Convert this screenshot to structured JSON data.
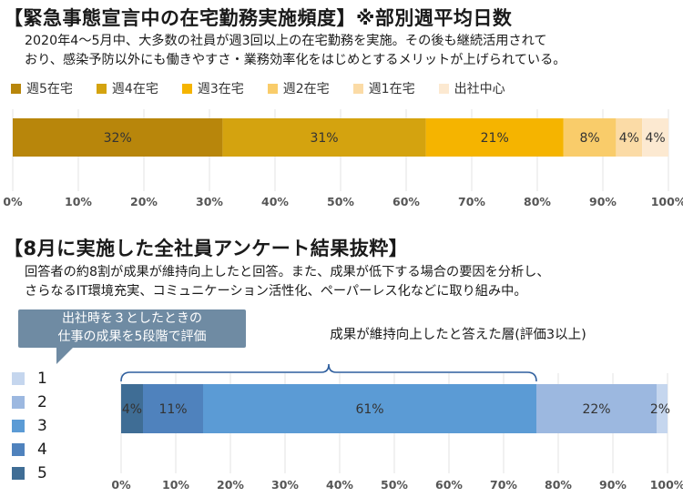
{
  "section1": {
    "title": "【緊急事態宣言中の在宅勤務実施頻度】※部別週平均日数",
    "description_lines": [
      "2020年4～5月中、大多数の社員が週3回以上の在宅勤務を実施。その後も継続活用されて",
      "おり、感染予防以外にも働きやすさ・業務効率化をはじめとするメリットが上げられている。"
    ]
  },
  "section2": {
    "title": "【8月に実施した全社員アンケート結果抜粋】",
    "description_lines": [
      "回答者の約8割が成果が維持向上したと回答。また、成果が低下する場合の要因を分析し、",
      "さらなるIT環境充実、コミュニケーション活性化、ペーパーレス化などに取り組み中。"
    ],
    "callout_lines": [
      "出社時を３としたときの",
      "仕事の成果を5段階で評価"
    ],
    "bracket_label": "成果が維持向上したと答えた層(評価3以上)"
  },
  "chart_data": [
    {
      "type": "bar",
      "orientation": "horizontal-stacked",
      "xlim": [
        0,
        100
      ],
      "x_ticks": [
        "0%",
        "10%",
        "20%",
        "30%",
        "40%",
        "50%",
        "60%",
        "70%",
        "80%",
        "90%",
        "100%"
      ],
      "legend_position": "top",
      "series": [
        {
          "name": "週5在宅",
          "value": 32,
          "label": "32%",
          "color": "#b8860b"
        },
        {
          "name": "週4在宅",
          "value": 31,
          "label": "31%",
          "color": "#d4a30f"
        },
        {
          "name": "週3在宅",
          "value": 21,
          "label": "21%",
          "color": "#f5b400"
        },
        {
          "name": "週2在宅",
          "value": 8,
          "label": "8%",
          "color": "#f9cc6a"
        },
        {
          "name": "週1在宅",
          "value": 4,
          "label": "4%",
          "color": "#fbdba6"
        },
        {
          "name": "出社中心",
          "value": 4,
          "label": "4%",
          "color": "#fce9d1"
        }
      ]
    },
    {
      "type": "bar",
      "orientation": "horizontal-stacked",
      "xlim": [
        0,
        100
      ],
      "x_ticks": [
        "0%",
        "10%",
        "20%",
        "30%",
        "40%",
        "50%",
        "60%",
        "70%",
        "80%",
        "90%",
        "100%"
      ],
      "legend_position": "left",
      "series": [
        {
          "name": "5",
          "value": 4,
          "label": "4%",
          "color": "#3f6d95"
        },
        {
          "name": "4",
          "value": 11,
          "label": "11%",
          "color": "#4f82bd"
        },
        {
          "name": "3",
          "value": 61,
          "label": "61%",
          "color": "#5b9bd5"
        },
        {
          "name": "2",
          "value": 22,
          "label": "22%",
          "color": "#9cb8e0"
        },
        {
          "name": "1",
          "value": 2,
          "label": "2%",
          "color": "#c5d6ee"
        }
      ]
    }
  ]
}
